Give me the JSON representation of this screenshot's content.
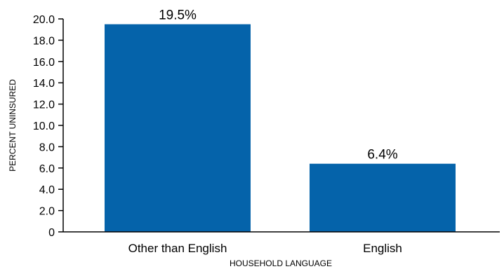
{
  "chart_data": {
    "type": "bar",
    "categories": [
      "Other than English",
      "English"
    ],
    "values": [
      19.5,
      6.4
    ],
    "data_labels": [
      "19.5%",
      "6.4%"
    ],
    "title": "",
    "xlabel": "HOUSEHOLD LANGUAGE",
    "ylabel": "PERCENT UNINSURED",
    "ylim": [
      0,
      20
    ],
    "yticks": [
      0,
      2,
      4,
      6,
      8,
      10,
      12,
      14,
      16,
      18,
      20
    ],
    "ytick_labels": [
      "0",
      "2.0",
      "4.0",
      "6.0",
      "8.0",
      "10.0",
      "12.0",
      "14.0",
      "16.0",
      "18.0",
      "20.0"
    ],
    "grid": false,
    "legend": "none",
    "bar_color": "#0563aa",
    "axis_color": "#000000"
  }
}
